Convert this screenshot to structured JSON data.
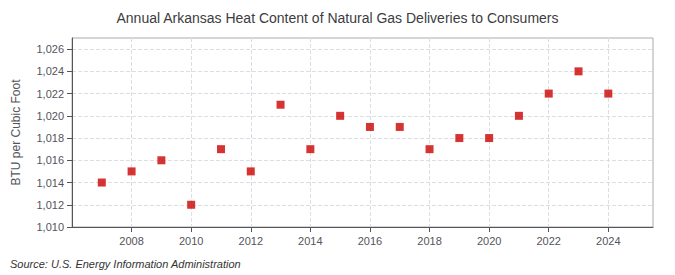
{
  "chart_data": {
    "type": "scatter",
    "title": "Annual Arkansas Heat Content of Natural Gas Deliveries to Consumers",
    "ylabel": "BTU per Cubic Foot",
    "source": "Source: U.S. Energy Information Administration",
    "x": [
      2007,
      2008,
      2009,
      2010,
      2011,
      2012,
      2013,
      2014,
      2015,
      2016,
      2017,
      2018,
      2019,
      2020,
      2021,
      2022,
      2023,
      2024
    ],
    "values": [
      1014,
      1015,
      1016,
      1012,
      1017,
      1015,
      1021,
      1017,
      1020,
      1019,
      1019,
      1017,
      1018,
      1018,
      1020,
      1022,
      1024,
      1022
    ],
    "color": "#cc0000",
    "marker": "square",
    "xlim": [
      2006.0,
      2025.5
    ],
    "xticks": [
      2008,
      2010,
      2012,
      2014,
      2016,
      2018,
      2020,
      2022,
      2024
    ],
    "ylim": [
      1010,
      1027
    ],
    "yticks": [
      {
        "value": 1010,
        "label": "1,010"
      },
      {
        "value": 1012,
        "label": "1,012"
      },
      {
        "value": 1014,
        "label": "1,014"
      },
      {
        "value": 1016,
        "label": "1,016"
      },
      {
        "value": 1018,
        "label": "1,018"
      },
      {
        "value": 1020,
        "label": "1,020"
      },
      {
        "value": 1022,
        "label": "1,022"
      },
      {
        "value": 1024,
        "label": "1,024"
      },
      {
        "value": 1026,
        "label": "1,026"
      }
    ],
    "grid": true
  }
}
